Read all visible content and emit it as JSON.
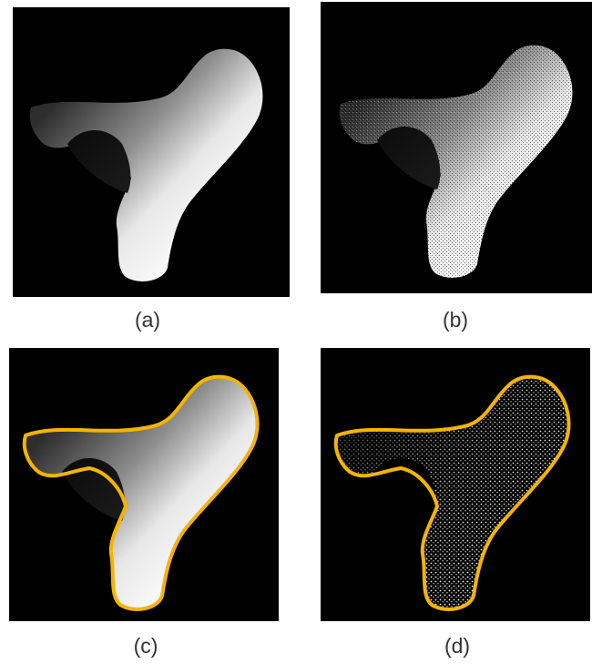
{
  "figure": {
    "panels": [
      {
        "id": "a",
        "caption": "(a)",
        "style": "smooth-depth"
      },
      {
        "id": "b",
        "caption": "(b)",
        "style": "noisy-depth"
      },
      {
        "id": "c",
        "caption": "(c)",
        "style": "smooth-depth-with-contour"
      },
      {
        "id": "d",
        "caption": "(d)",
        "style": "point-cloud-with-contour"
      }
    ],
    "colors": {
      "background": "#000000",
      "contour": "#f4b400",
      "shape_dark": "#3a3a3a",
      "shape_light": "#f5f5f5"
    }
  }
}
